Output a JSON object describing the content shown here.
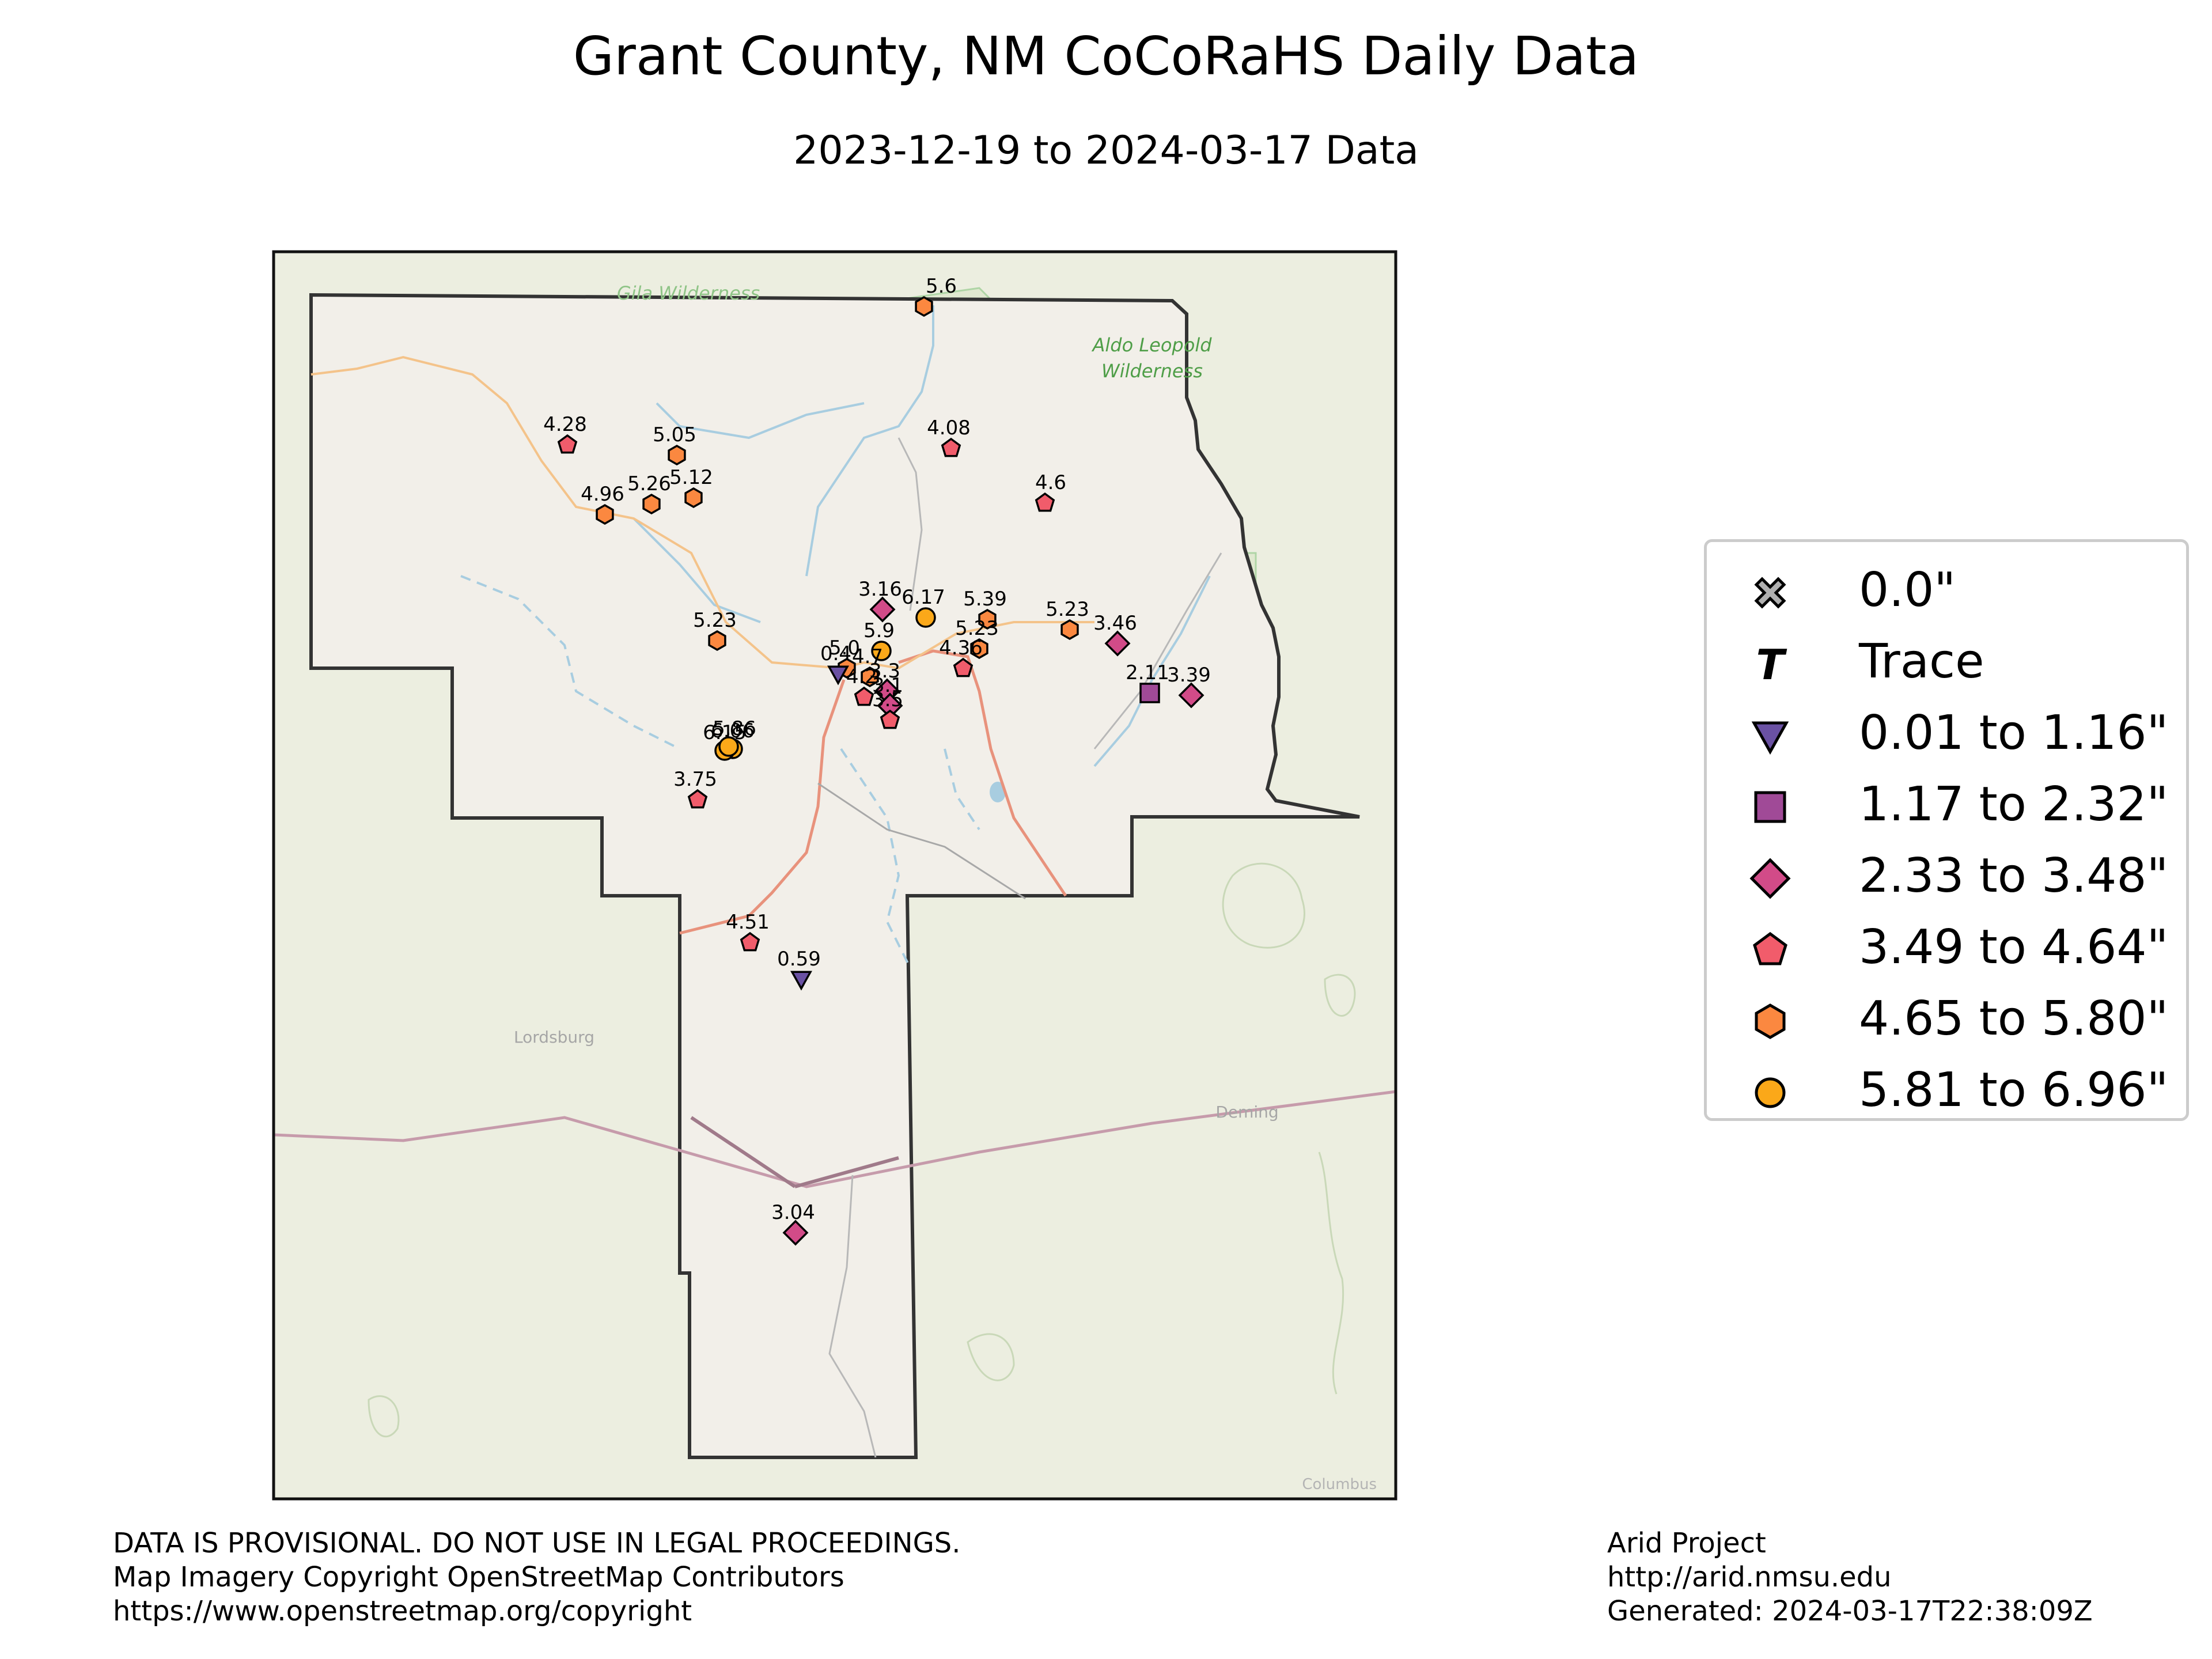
{
  "title": "Grant County, NM CoCoRaHS Daily Data",
  "subtitle": "2023-12-19 to 2024-03-17 Data",
  "map": {
    "place_labels": [
      {
        "text": "Gila Wilderness",
        "style": "green-italic"
      },
      {
        "text": "Aldo Leopold",
        "style": "green-italic"
      },
      {
        "text": "Wilderness",
        "style": "green-italic"
      },
      {
        "text": "Lordsburg",
        "style": "gray"
      },
      {
        "text": "Deming",
        "style": "gray"
      },
      {
        "text": "Columbus",
        "style": "gray"
      }
    ],
    "colors": {
      "background": "#eceee0",
      "county_fill": "#f2efe9",
      "county_outline": "#333333",
      "wilderness": "#a9d3a0",
      "water": "#a8cde0",
      "road_major": "#e8927c",
      "road_minor": "#f4c38a"
    }
  },
  "legend": {
    "items": [
      {
        "label": "0.0\"",
        "symbol": "x-marker",
        "color": "#b0b0b0"
      },
      {
        "label": "Trace",
        "symbol": "t-marker",
        "color": "#000000"
      },
      {
        "label": "0.01 to 1.16\"",
        "symbol": "triangle-down",
        "color": "#6a51a3"
      },
      {
        "label": "1.17 to 2.32\"",
        "symbol": "square",
        "color": "#a04a97"
      },
      {
        "label": "2.33 to 3.48\"",
        "symbol": "diamond",
        "color": "#d24b88"
      },
      {
        "label": "3.49 to 4.64\"",
        "symbol": "pentagon",
        "color": "#f15c6b"
      },
      {
        "label": "4.65 to 5.80\"",
        "symbol": "hexagon",
        "color": "#fb8840"
      },
      {
        "label": "5.81 to 6.96\"",
        "symbol": "circle",
        "color": "#fba819"
      }
    ]
  },
  "chart_data": {
    "type": "scatter",
    "title": "Grant County, NM CoCoRaHS Daily Data",
    "subtitle": "2023-12-19 to 2024-03-17 Data",
    "unit": "inches precipitation",
    "stations": [
      {
        "value": "5.6",
        "category": "4.65 to 5.80\""
      },
      {
        "value": "4.28",
        "category": "3.49 to 4.64\""
      },
      {
        "value": "5.05",
        "category": "4.65 to 5.80\""
      },
      {
        "value": "4.08",
        "category": "3.49 to 4.64\""
      },
      {
        "value": "5.26",
        "category": "4.65 to 5.80\""
      },
      {
        "value": "5.12",
        "category": "4.65 to 5.80\""
      },
      {
        "value": "4.96",
        "category": "4.65 to 5.80\""
      },
      {
        "value": "4.6",
        "category": "3.49 to 4.64\""
      },
      {
        "value": "3.16",
        "category": "2.33 to 3.48\""
      },
      {
        "value": "6.17",
        "category": "5.81 to 6.96\""
      },
      {
        "value": "5.39",
        "category": "4.65 to 5.80\""
      },
      {
        "value": "5.23",
        "category": "4.65 to 5.80\""
      },
      {
        "value": "3.46",
        "category": "2.33 to 3.48\""
      },
      {
        "value": "5.23",
        "category": "4.65 to 5.80\""
      },
      {
        "value": "5.23",
        "category": "4.65 to 5.80\""
      },
      {
        "value": "4.36",
        "category": "3.49 to 4.64\""
      },
      {
        "value": "2.11",
        "category": "1.17 to 2.32\""
      },
      {
        "value": "3.39",
        "category": "2.33 to 3.48\""
      },
      {
        "value": "6.06",
        "category": "5.81 to 6.96\""
      },
      {
        "value": "6.15",
        "category": "5.81 to 6.96\""
      },
      {
        "value": "5.86",
        "category": "5.81 to 6.96\""
      },
      {
        "value": "3.75",
        "category": "3.49 to 4.64\""
      },
      {
        "value": "4.51",
        "category": "3.49 to 4.64\""
      },
      {
        "value": "0.59",
        "category": "0.01 to 1.16\""
      },
      {
        "value": "3.04",
        "category": "2.33 to 3.48\""
      },
      {
        "value": "5.9",
        "category": "5.81 to 6.96\""
      },
      {
        "value": "5.0",
        "category": "4.65 to 5.80\""
      },
      {
        "value": "0.4",
        "category": "0.01 to 1.16\""
      },
      {
        "value": "4.7",
        "category": "4.65 to 5.80\""
      },
      {
        "value": "4.2",
        "category": "3.49 to 4.64\""
      },
      {
        "value": "3.3",
        "category": "2.33 to 3.48\""
      },
      {
        "value": "3.1",
        "category": "2.33 to 3.48\""
      },
      {
        "value": "3.5",
        "category": "3.49 to 4.64\""
      }
    ]
  },
  "footer": {
    "left": [
      "DATA IS PROVISIONAL. DO NOT USE IN LEGAL PROCEEDINGS.",
      "Map Imagery Copyright OpenStreetMap Contributors",
      "https://www.openstreetmap.org/copyright"
    ],
    "right": [
      "Arid Project",
      "http://arid.nmsu.edu",
      "Generated: 2024-03-17T22:38:09Z"
    ]
  }
}
